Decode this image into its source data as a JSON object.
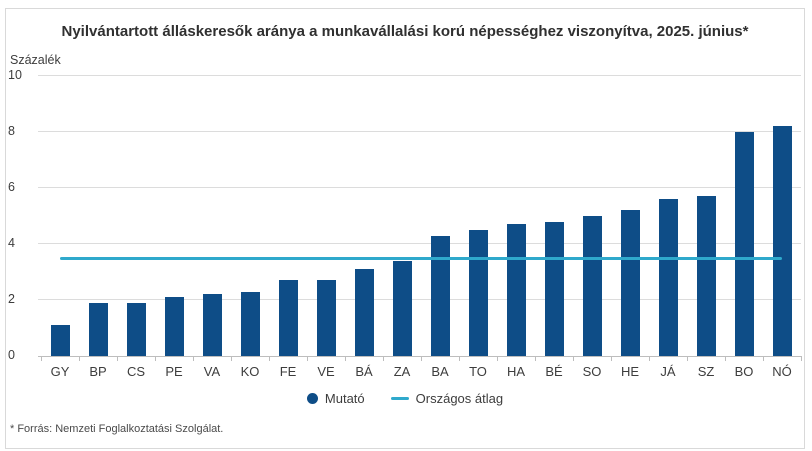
{
  "title": "Nyilvántartott álláskeresők aránya a munkavállalási korú népességhez viszonyítva, 2025. június*",
  "unit_label": "Százalék",
  "footnote": "* Forrás: Nemzeti Foglalkoztatási Szolgálat.",
  "legend": {
    "series_label": "Mutató",
    "average_label": "Országos átlag"
  },
  "colors": {
    "bar": "#0e4d87",
    "average_line": "#2fa9cc",
    "grid": "#dcdcdc",
    "axis": "#bdbdbd",
    "text": "#3d3d3d"
  },
  "chart_data": {
    "type": "bar",
    "title": "Nyilvántartott álláskeresők aránya a munkavállalási korú népességhez viszonyítva, 2025. június*",
    "xlabel": "",
    "ylabel": "Százalék",
    "ylim": [
      0,
      10
    ],
    "yticks": [
      0,
      2,
      4,
      6,
      8,
      10
    ],
    "grid": true,
    "legend_position": "bottom",
    "categories": [
      "GY",
      "BP",
      "CS",
      "PE",
      "VA",
      "KO",
      "FE",
      "VE",
      "BÁ",
      "ZA",
      "BA",
      "TO",
      "HA",
      "BÉ",
      "SO",
      "HE",
      "JÁ",
      "SZ",
      "BO",
      "NÓ"
    ],
    "series": [
      {
        "name": "Mutató",
        "type": "bar",
        "values": [
          1.1,
          1.9,
          1.9,
          2.1,
          2.2,
          2.3,
          2.7,
          2.7,
          3.1,
          3.4,
          4.3,
          4.5,
          4.7,
          4.8,
          5.0,
          5.2,
          5.6,
          5.7,
          8.0,
          8.2
        ]
      },
      {
        "name": "Országos átlag",
        "type": "line",
        "value": 3.5
      }
    ]
  }
}
